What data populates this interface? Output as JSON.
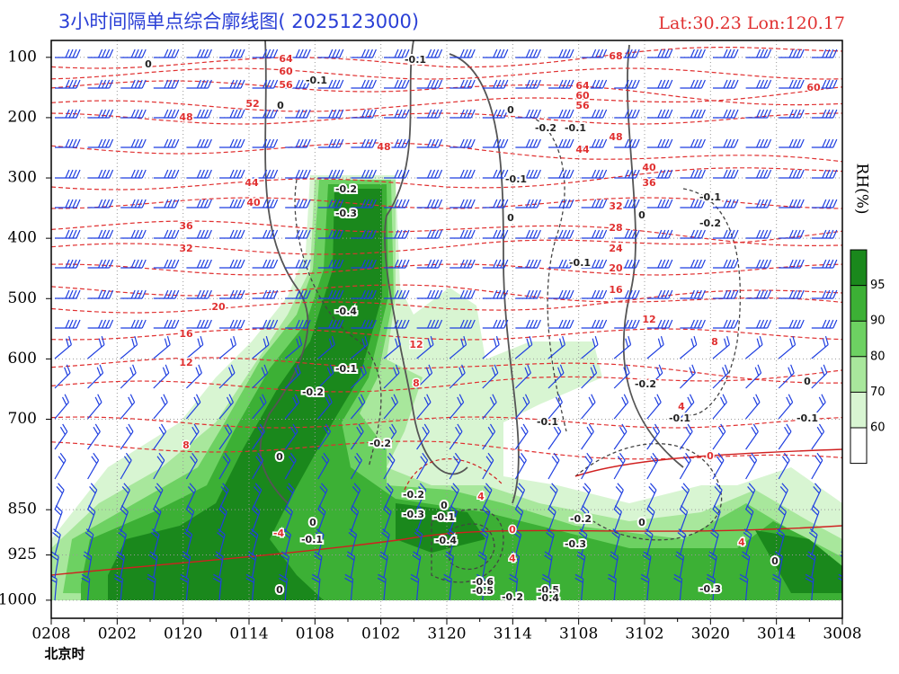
{
  "chart_data": {
    "type": "cross-section",
    "title": "3小时间隔单点综合廓线图( 2025123000)",
    "location": "Lat:30.23  Lon:120.17",
    "x_label": "北京时",
    "categories": [
      "0208",
      "0202",
      "0120",
      "0114",
      "0108",
      "0102",
      "3120",
      "3114",
      "3108",
      "3102",
      "3020",
      "3014",
      "3008"
    ],
    "ylim": [
      72,
      1030
    ],
    "inverted_y": true,
    "yticks": [
      100,
      200,
      300,
      400,
      500,
      600,
      700,
      850,
      925,
      1000
    ],
    "grid": true,
    "colorbar": {
      "label": "RH(%)",
      "ticks": [
        60,
        70,
        80,
        90,
        95
      ],
      "colors": [
        "#ffffff",
        "#d8f5d2",
        "#a8e79c",
        "#6dd162",
        "#3cb035",
        "#1a881c"
      ]
    },
    "temperature_labels": [
      "64",
      "60",
      "56",
      "52",
      "48",
      "48",
      "44",
      "40",
      "36",
      "32",
      "20",
      "16",
      "12",
      "12",
      "8",
      "8",
      "68",
      "64",
      "60",
      "56",
      "48",
      "44",
      "40",
      "36",
      "32",
      "28",
      "24",
      "20",
      "16",
      "12",
      "8",
      "4",
      "60",
      "0",
      "4",
      "4",
      "0",
      "4",
      "-4"
    ],
    "omega_labels": [
      "0",
      "-0.1",
      "-0.1",
      "0",
      "0",
      "-0.2",
      "-0.1",
      "-0.1",
      "0",
      "-0.1",
      "-0.2",
      "0",
      "-0.2",
      "-0.3",
      "-0.1",
      "-0.4",
      "-0.1",
      "-0.2",
      "-0.2",
      "-0.1",
      "-0.1",
      "-0.2",
      "0",
      "-0.2",
      "-0.3",
      "0",
      "-0.1",
      "0",
      "-0.1",
      "-0.4",
      "-0.2",
      "-0.3",
      "0",
      "0",
      "0",
      "-0.6",
      "-0.5",
      "-0.2",
      "-0.5",
      "-0.4",
      "-0.3",
      "-0.1",
      "0"
    ]
  }
}
